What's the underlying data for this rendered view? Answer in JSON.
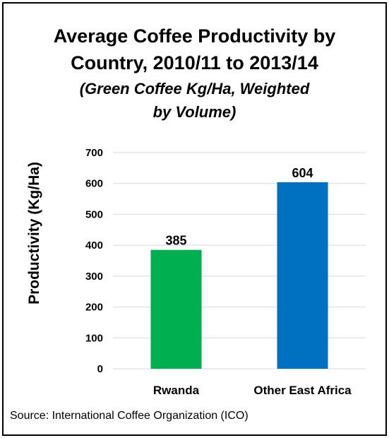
{
  "chart_data": {
    "type": "bar",
    "title_lines": [
      "Average Coffee Productivity by",
      "Country, 2010/11 to 2013/14"
    ],
    "subtitle_lines": [
      "(Green Coffee Kg/Ha, Weighted",
      "by Volume)"
    ],
    "ylabel": "Productivity (Kg/Ha)",
    "xlabel": "",
    "categories": [
      "Rwanda",
      "Other East Africa"
    ],
    "values": [
      385,
      604
    ],
    "data_labels": [
      "385",
      "604"
    ],
    "bar_colors": [
      "#00B050",
      "#0070C0"
    ],
    "ylim": [
      0,
      700
    ],
    "yticks": [
      0,
      100,
      200,
      300,
      400,
      500,
      600,
      700
    ],
    "grid": true,
    "legend": "none"
  },
  "source": "Source: International Coffee Organization (ICO)"
}
